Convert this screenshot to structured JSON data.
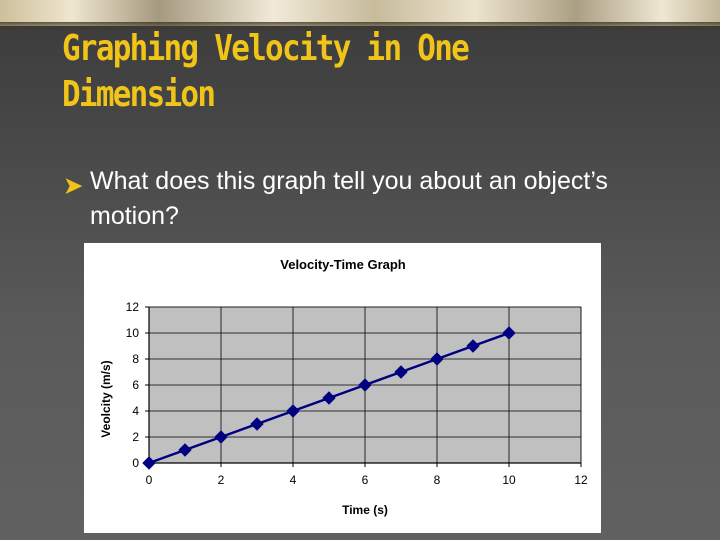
{
  "slide": {
    "title": "Graphing Velocity in One Dimension",
    "bullet": "What does this graph tell you about an object’s motion?"
  },
  "colors": {
    "title": "#f0c419",
    "line": "#000080",
    "plot_bg": "#c0c0c0"
  },
  "chart_data": {
    "type": "line",
    "title": "Velocity-Time Graph",
    "xlabel": "Time (s)",
    "ylabel": "Veolcity (m/s)",
    "x": [
      0,
      1,
      2,
      3,
      4,
      5,
      6,
      7,
      8,
      9,
      10
    ],
    "series": [
      {
        "values": [
          0,
          1,
          2,
          3,
          4,
          5,
          6,
          7,
          8,
          9,
          10
        ],
        "marker": "diamond"
      }
    ],
    "xlim": [
      0,
      12
    ],
    "ylim": [
      0,
      12
    ],
    "xticks": [
      0,
      2,
      4,
      6,
      8,
      10,
      12
    ],
    "yticks": [
      0,
      2,
      4,
      6,
      8,
      10,
      12
    ],
    "grid": true,
    "legend": "none"
  }
}
